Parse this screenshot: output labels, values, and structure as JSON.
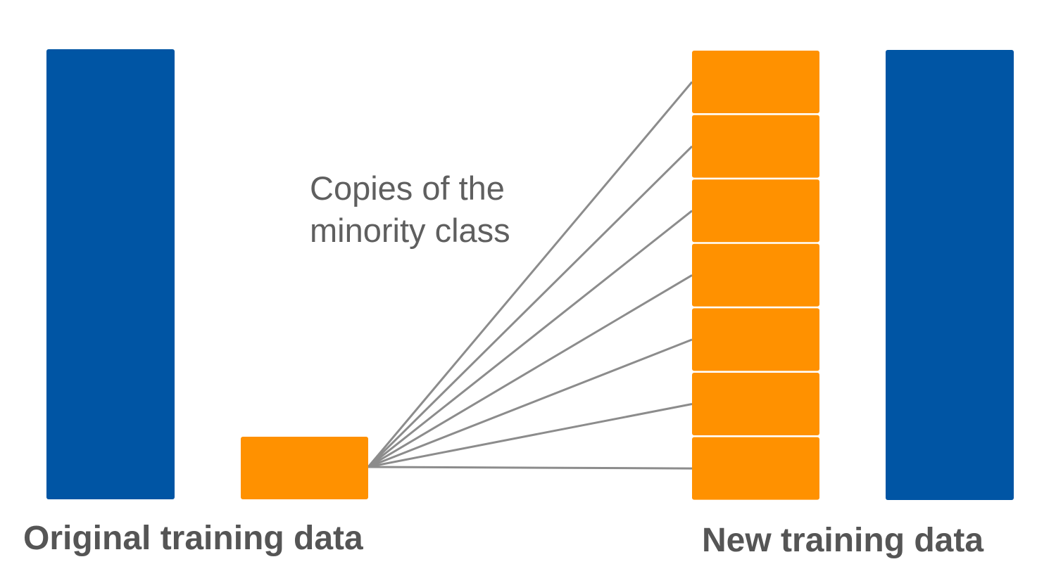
{
  "colors": {
    "majority": "#0055a4",
    "minority": "#ff9100",
    "connector": "#8c8c8c",
    "text": "#555555"
  },
  "labels": {
    "original": "Original training data",
    "new": "New training data"
  },
  "annotation": {
    "line1": "Copies of the",
    "line2": "minority class"
  },
  "diagram": {
    "original": {
      "majority_bars": 1,
      "minority_blocks": 1
    },
    "new": {
      "majority_bars": 1,
      "minority_copies": 7
    }
  }
}
